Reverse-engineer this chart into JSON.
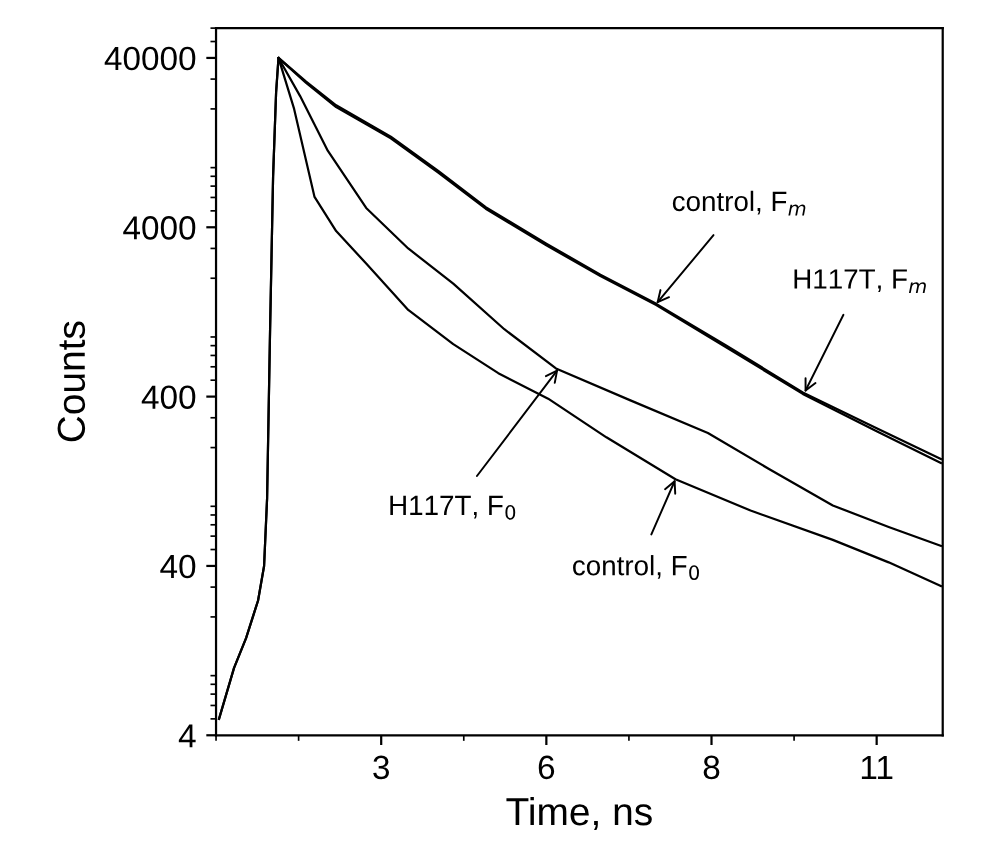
{
  "chart_data": {
    "type": "line",
    "xlabel": "Time, ns",
    "ylabel": "Counts",
    "log": "y",
    "grid": false,
    "legend": false,
    "marker": "none",
    "line_style": "solid",
    "xlim": [
      0,
      12.1
    ],
    "ylim": [
      4,
      60000
    ],
    "xticks": [
      {
        "value": 2.75,
        "label": "3"
      },
      {
        "value": 5.5,
        "label": "6"
      },
      {
        "value": 8.25,
        "label": "8"
      },
      {
        "value": 11,
        "label": "11"
      }
    ],
    "yticks": [
      4,
      40,
      400,
      4000,
      40000
    ],
    "series": [
      {
        "color": "#000000",
        "x": [
          0.05,
          0.3,
          0.5,
          0.7,
          0.8,
          0.85,
          0.9,
          0.95,
          1.0,
          1.04,
          1.5,
          2.0,
          2.91,
          3.7,
          4.49,
          5.5,
          6.4,
          7.33,
          8.5,
          9.77,
          11.0,
          12.07
        ],
        "values": [
          5,
          10,
          15,
          25,
          40,
          100,
          1000,
          8000,
          25000,
          40000,
          29000,
          21000,
          13700,
          8600,
          5260,
          3200,
          2100,
          1412,
          800,
          423,
          260,
          171
        ]
      },
      {
        "color": "#000000",
        "x": [
          0.05,
          0.3,
          0.5,
          0.7,
          0.8,
          0.85,
          0.9,
          0.95,
          1.0,
          1.04,
          1.5,
          2.0,
          2.91,
          3.7,
          4.49,
          5.5,
          6.4,
          7.33,
          8.5,
          9.77,
          11.0,
          12.07
        ],
        "values": [
          5,
          10,
          15,
          25,
          40,
          100,
          1000,
          8000,
          25000,
          40000,
          28500,
          20500,
          13400,
          8400,
          5150,
          3130,
          2060,
          1390,
          780,
          415,
          250,
          162
        ]
      },
      {
        "color": "#000000",
        "x": [
          1.04,
          1.4,
          1.86,
          2.5,
          3.2,
          3.95,
          4.8,
          5.66,
          6.9,
          8.19,
          9.2,
          10.27,
          11.2,
          12.07
        ],
        "values": [
          40000,
          23800,
          11330,
          5200,
          3000,
          1857,
          1000,
          587,
          380,
          244,
          150,
          91,
          68,
          52.6
        ]
      },
      {
        "color": "#000000",
        "x": [
          1.04,
          1.3,
          1.64,
          2.0,
          2.5,
          3.2,
          3.95,
          4.7,
          5.53,
          6.5,
          7.65,
          8.9,
          10.27,
          11.2,
          12.07
        ],
        "values": [
          40000,
          20000,
          6040,
          3800,
          2443,
          1300,
          816,
          550,
          389,
          230,
          130,
          85,
          57,
          42,
          30.4
        ]
      }
    ],
    "annotations": [
      {
        "text": "control, F$_{m}$",
        "x": 7.33,
        "y": 1412
      },
      {
        "text": "H117T, F$_{m}$",
        "x": 9.8,
        "y": 423
      },
      {
        "text": "H117T, F$_{0}$",
        "x": 5.7,
        "y": 583
      },
      {
        "text": "control, F$_{0}$",
        "x": 7.65,
        "y": 130
      }
    ]
  }
}
